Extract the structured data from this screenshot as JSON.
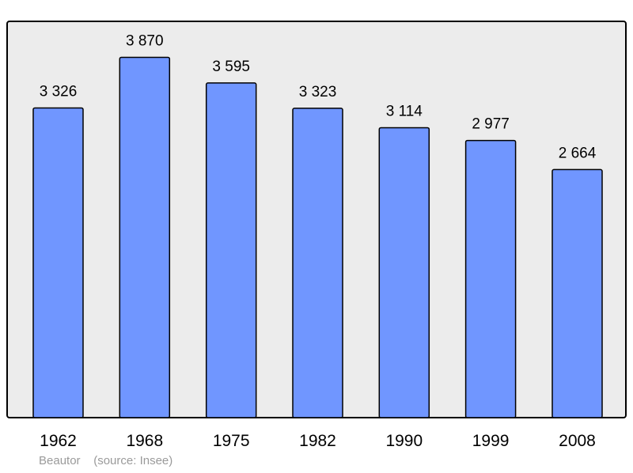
{
  "chart_data": {
    "type": "bar",
    "categories": [
      "1962",
      "1968",
      "1975",
      "1982",
      "1990",
      "1999",
      "2008"
    ],
    "values": [
      3326,
      3870,
      3595,
      3323,
      3114,
      2977,
      2664
    ],
    "value_labels": [
      "3 326",
      "3 870",
      "3 595",
      "3 323",
      "3 114",
      "2 977",
      "2 664"
    ],
    "ylim": [
      0,
      4200
    ],
    "grid": false,
    "colors": {
      "bar": "#7096ff",
      "background": "#ececec",
      "border": "#000000"
    }
  },
  "footer": {
    "commune": "Beautor",
    "source": "(source: Insee)"
  }
}
